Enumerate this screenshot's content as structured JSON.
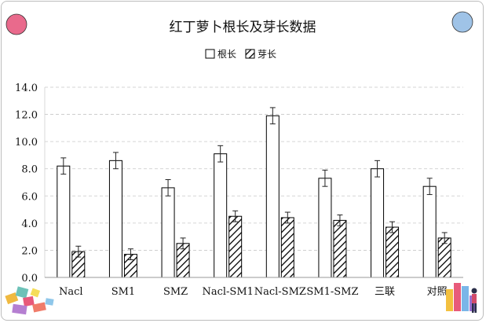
{
  "chart_data": {
    "type": "bar",
    "title": "红丁萝卜根长及芽长数据",
    "xlabel": "",
    "ylabel": "",
    "categories": [
      "Nacl",
      "SM1",
      "SMZ",
      "Nacl-SM1",
      "Nacl-SMZ",
      "SM1-SMZ",
      "三联",
      "对照"
    ],
    "series": [
      {
        "name": "根长",
        "values": [
          8.2,
          8.6,
          6.6,
          9.1,
          11.9,
          7.3,
          8.0,
          6.7
        ],
        "errors": [
          0.6,
          0.6,
          0.6,
          0.6,
          0.6,
          0.6,
          0.6,
          0.6
        ],
        "pattern": "none"
      },
      {
        "name": "芽长",
        "values": [
          1.9,
          1.7,
          2.5,
          4.5,
          4.4,
          4.2,
          3.7,
          2.9
        ],
        "errors": [
          0.4,
          0.4,
          0.4,
          0.4,
          0.4,
          0.4,
          0.4,
          0.4
        ],
        "pattern": "diagonal-hatch"
      }
    ],
    "ylim": [
      0,
      14
    ],
    "yticks": [
      "0.0",
      "2.0",
      "4.0",
      "6.0",
      "8.0",
      "10.0",
      "12.0",
      "14.0"
    ],
    "grid": "horizontal-dashed",
    "legend": "top-center"
  },
  "decorations": {
    "left_circle_color": "#e96a8c",
    "right_circle_color": "#9fc3e7",
    "corner_left_icon": "puzzle-blocks-icon",
    "corner_right_icon": "bar-chart-person-icon"
  }
}
